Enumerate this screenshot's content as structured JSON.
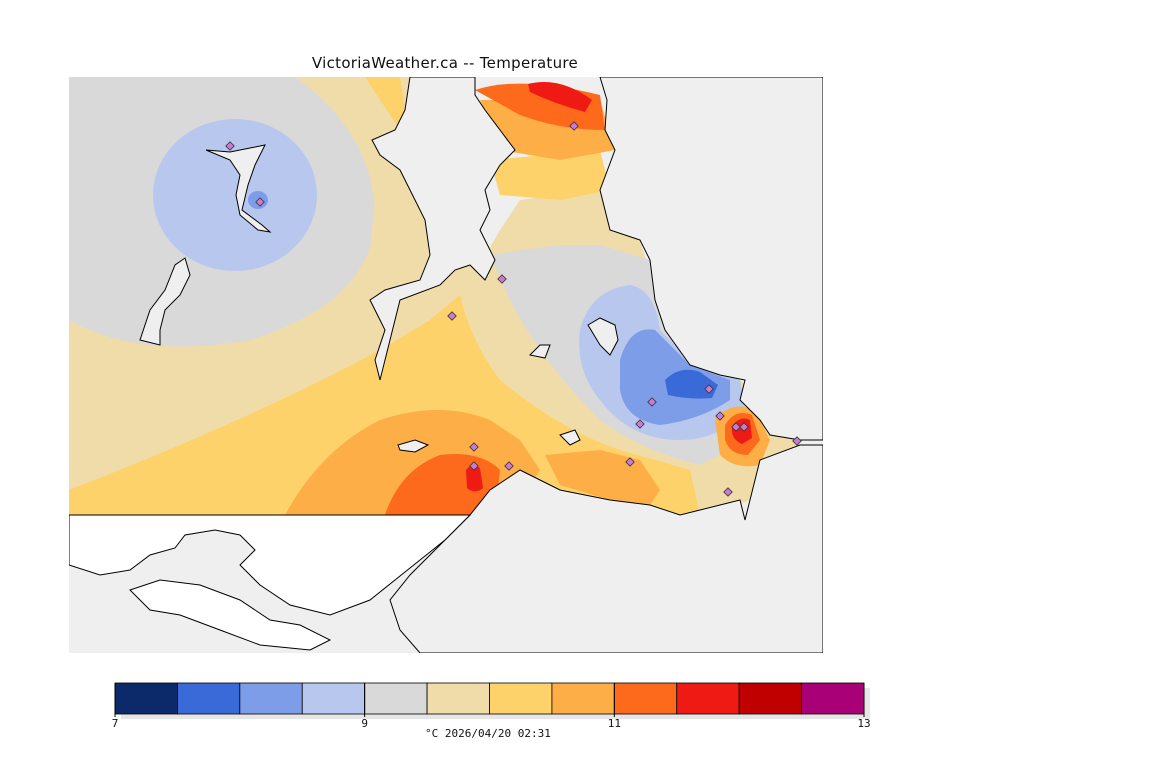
{
  "title": "VictoriaWeather.ca -- Temperature",
  "legend": {
    "min": 7,
    "max": 13,
    "colors": [
      "#0c2a6a",
      "#3a6ad8",
      "#7e9de8",
      "#b8c7ee",
      "#d9d9d9",
      "#f0dca8",
      "#fdd26a",
      "#fdae46",
      "#fd6a1c",
      "#ef1a14",
      "#c00000",
      "#aa0077"
    ],
    "tick_labels": [
      "7",
      "9",
      "11",
      "13"
    ],
    "tick_values": [
      7,
      9,
      11,
      13
    ],
    "caption": "°C  2026/04/20 02:31"
  },
  "stations": [
    "station-1",
    "station-2",
    "station-3",
    "station-4",
    "station-5",
    "station-6",
    "station-7",
    "station-8",
    "station-9",
    "station-10",
    "station-11",
    "station-12",
    "station-13",
    "station-14",
    "station-15",
    "station-16",
    "station-17"
  ]
}
